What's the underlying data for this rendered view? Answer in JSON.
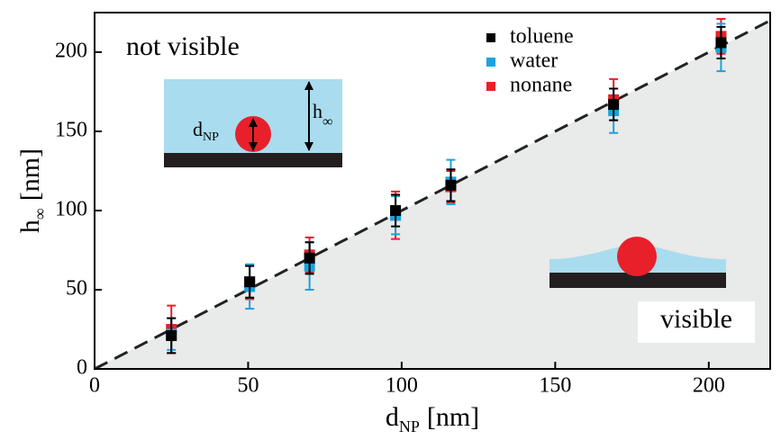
{
  "chart_data": {
    "type": "scatter",
    "x_label": [
      "d",
      "NP",
      "[nm]"
    ],
    "y_label": [
      "h",
      "∞",
      "[nm]"
    ],
    "annotations": {
      "top_left": "not visible",
      "bottom_right": "visible",
      "inset_diameter": [
        "d",
        "NP"
      ],
      "inset_height": [
        "h",
        "∞"
      ]
    },
    "xlim": [
      0,
      220
    ],
    "ylim": [
      0,
      225
    ],
    "xticks": [
      0,
      50,
      100,
      150,
      200
    ],
    "yticks": [
      0,
      50,
      100,
      150,
      200
    ],
    "legend": "top-right",
    "series": [
      {
        "name": "toluene",
        "color": "#000000",
        "x": [
          25,
          50.5,
          70,
          98,
          116,
          169,
          204
        ],
        "values": [
          21,
          55,
          70,
          100,
          116,
          167,
          206
        ],
        "errors": [
          11,
          10,
          10,
          10,
          10,
          10,
          10
        ]
      },
      {
        "name": "water",
        "color": "#1ba3dd",
        "x": [
          25,
          50.5,
          70,
          98,
          116,
          169,
          204
        ],
        "values": [
          22,
          52,
          65,
          97,
          118,
          163,
          203
        ],
        "errors": [
          10,
          14,
          15,
          12,
          14,
          14,
          15
        ]
      },
      {
        "name": "nonane",
        "color": "#e8202a",
        "x": [
          25,
          50.5,
          70,
          98,
          116,
          169,
          204
        ],
        "values": [
          25,
          55,
          72,
          97,
          115,
          170,
          210
        ],
        "errors": [
          15,
          11,
          11,
          15,
          10,
          13,
          11
        ]
      }
    ]
  }
}
